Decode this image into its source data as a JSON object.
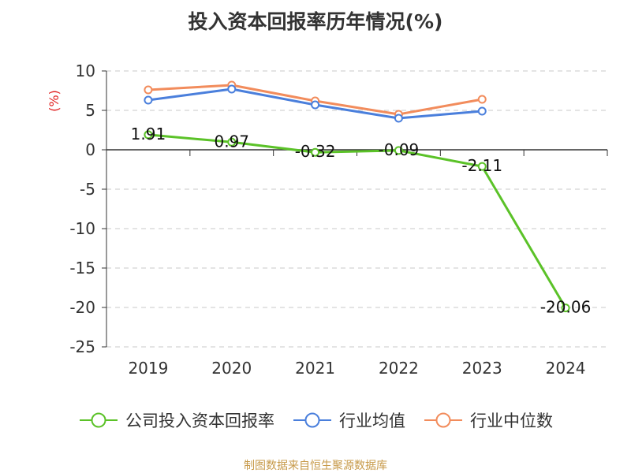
{
  "chart_data": {
    "type": "line",
    "title": "投入资本回报率历年情况(%)",
    "ylabel": "(%)",
    "categories": [
      "2019",
      "2020",
      "2021",
      "2022",
      "2023",
      "2024"
    ],
    "ylim": [
      -25,
      10
    ],
    "yticks": [
      10,
      5,
      0,
      -5,
      -10,
      -15,
      -20,
      -25
    ],
    "grid": true,
    "legend_position": "bottom",
    "series": [
      {
        "name": "公司投入资本回报率",
        "color": "#5bc228",
        "values": [
          1.91,
          0.97,
          -0.32,
          -0.09,
          -2.11,
          -20.06
        ],
        "labels": [
          "1.91",
          "0.97",
          "-0.32",
          "-0.09",
          "-2.11",
          "-20.06"
        ]
      },
      {
        "name": "行业均值",
        "color": "#4a7fdc",
        "values": [
          6.3,
          7.7,
          5.7,
          4.0,
          4.9,
          null
        ]
      },
      {
        "name": "行业中位数",
        "color": "#f28c5c",
        "values": [
          7.6,
          8.2,
          6.2,
          4.5,
          6.4,
          null
        ]
      }
    ]
  },
  "source_note": "制图数据来自恒生聚源数据库"
}
